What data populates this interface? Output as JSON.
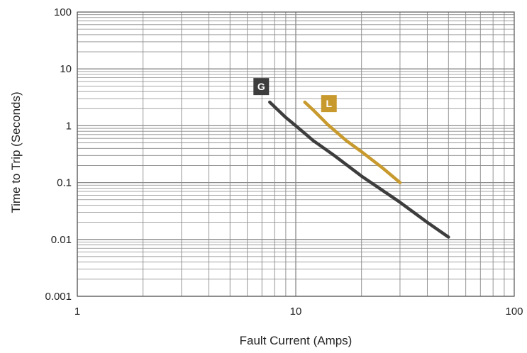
{
  "chart_data": {
    "type": "line",
    "title": "",
    "xlabel": "Fault Current (Amps)",
    "ylabel": "Time to Trip (Seconds)",
    "x_scale": "log",
    "y_scale": "log",
    "xlim": [
      1,
      100
    ],
    "ylim": [
      0.001,
      100
    ],
    "grid": true,
    "x_tick_labels": [
      "1",
      "10",
      "100"
    ],
    "y_tick_labels": [
      "0.001",
      "0.01",
      "0.1",
      "1",
      "10",
      "100"
    ],
    "series": [
      {
        "name": "G",
        "color": "#3d3d3d",
        "points": [
          [
            7.6,
            2.6
          ],
          [
            9,
            1.4
          ],
          [
            10,
            1.0
          ],
          [
            12,
            0.55
          ],
          [
            15,
            0.3
          ],
          [
            20,
            0.13
          ],
          [
            30,
            0.045
          ],
          [
            40,
            0.02
          ],
          [
            50,
            0.011
          ]
        ]
      },
      {
        "name": "L",
        "color": "#c89a2e",
        "points": [
          [
            11,
            2.6
          ],
          [
            12,
            1.9
          ],
          [
            14,
            1.05
          ],
          [
            17,
            0.55
          ],
          [
            20,
            0.35
          ],
          [
            25,
            0.18
          ],
          [
            30,
            0.1
          ]
        ]
      }
    ]
  }
}
